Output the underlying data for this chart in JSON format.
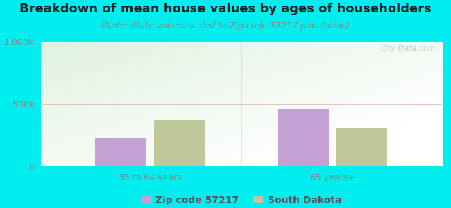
{
  "title": "Breakdown of mean house values by ages of householders",
  "subtitle": "(Note: State values scaled to Zip code 57217 population)",
  "categories": [
    "35 to 64 years",
    "65 years+"
  ],
  "zip_values": [
    230000,
    460000
  ],
  "state_values": [
    370000,
    310000
  ],
  "ylim": [
    0,
    1000000
  ],
  "yticks": [
    0,
    500000,
    1000000
  ],
  "ytick_labels": [
    "0",
    "500k",
    "1,000k"
  ],
  "bar_color_zip": "#c4a0d4",
  "bar_color_state": "#bec898",
  "outer_bg": "#00eeee",
  "legend_label_zip": "Zip code 57217",
  "legend_label_state": "South Dakota",
  "title_fontsize": 13,
  "subtitle_fontsize": 9,
  "tick_fontsize": 9,
  "legend_fontsize": 10,
  "bar_width": 0.28,
  "watermark": "City-Data.com"
}
